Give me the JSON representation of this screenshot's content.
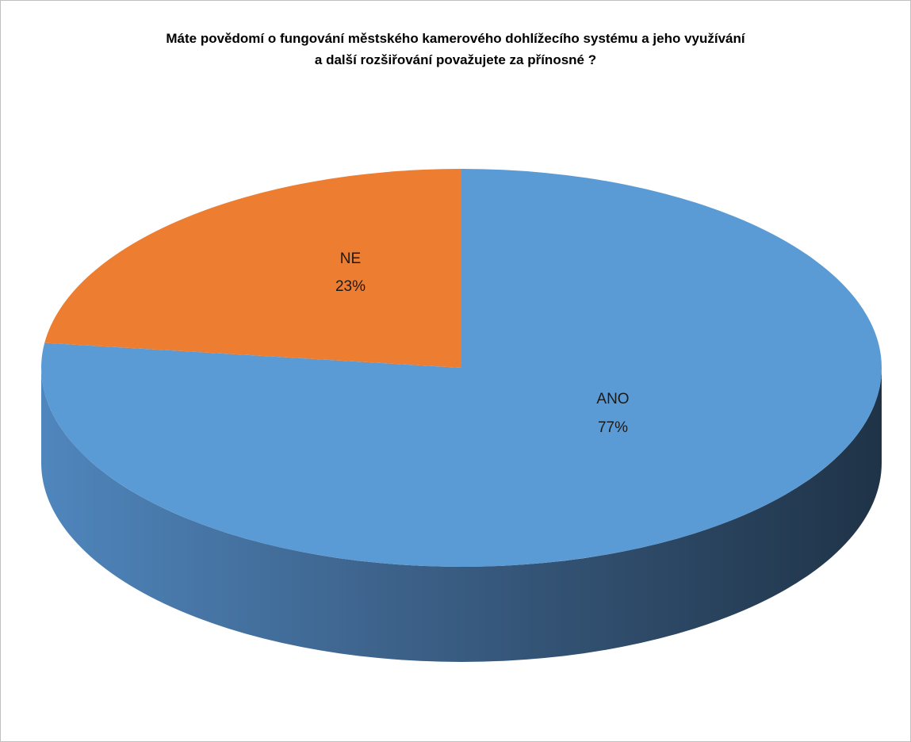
{
  "chart_data": {
    "type": "pie",
    "style": "3d",
    "title_lines": [
      "Máte povědomí o fungování městského kamerového dohlížecího systému a jeho využívání",
      "a další rozšiřování považujete za přínosné ?"
    ],
    "slices": [
      {
        "name": "ANO",
        "value": 77,
        "value_label": "77%",
        "color": "#5b9bd5"
      },
      {
        "name": "NE",
        "value": 23,
        "value_label": "23%",
        "color": "#ed7d31"
      }
    ],
    "legend": "none",
    "data_labels": "category-and-percent"
  }
}
